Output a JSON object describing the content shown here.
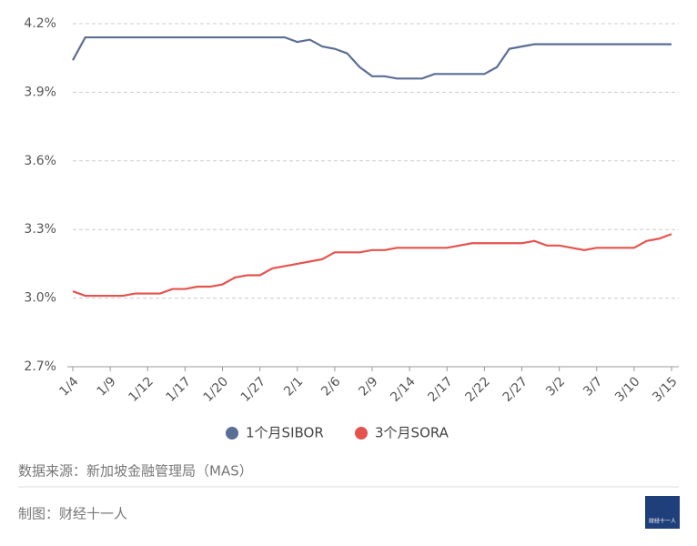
{
  "chart_data": {
    "type": "line",
    "categories": [
      "1/4",
      null,
      null,
      "1/9",
      null,
      null,
      "1/12",
      null,
      null,
      "1/17",
      null,
      null,
      "1/20",
      null,
      null,
      "1/27",
      null,
      null,
      "2/1",
      null,
      null,
      "2/6",
      null,
      null,
      "2/9",
      null,
      null,
      "2/14",
      null,
      null,
      "2/17",
      null,
      null,
      "2/22",
      null,
      null,
      "2/27",
      null,
      null,
      "3/2",
      null,
      null,
      "3/7",
      null,
      null,
      "3/10",
      null,
      null,
      "3/15"
    ],
    "series": [
      {
        "name": "1个月SIBOR",
        "color": "#5b6e96",
        "values": [
          4.04,
          4.14,
          4.14,
          4.14,
          4.14,
          4.14,
          4.14,
          4.14,
          4.14,
          4.14,
          4.14,
          4.14,
          4.14,
          4.14,
          4.14,
          4.14,
          4.14,
          4.14,
          4.12,
          4.13,
          4.1,
          4.09,
          4.07,
          4.01,
          3.97,
          3.97,
          3.96,
          3.96,
          3.96,
          3.98,
          3.98,
          3.98,
          3.98,
          3.98,
          4.01,
          4.09,
          4.1,
          4.11,
          4.11,
          4.11,
          4.11,
          4.11,
          4.11,
          4.11,
          4.11,
          4.11,
          4.11,
          4.11,
          4.11
        ]
      },
      {
        "name": "3个月SORA",
        "color": "#e5534f",
        "values": [
          3.03,
          3.01,
          3.01,
          3.01,
          3.01,
          3.02,
          3.02,
          3.02,
          3.04,
          3.04,
          3.05,
          3.05,
          3.06,
          3.09,
          3.1,
          3.1,
          3.13,
          3.14,
          3.15,
          3.16,
          3.17,
          3.2,
          3.2,
          3.2,
          3.21,
          3.21,
          3.22,
          3.22,
          3.22,
          3.22,
          3.22,
          3.23,
          3.24,
          3.24,
          3.24,
          3.24,
          3.24,
          3.25,
          3.23,
          3.23,
          3.22,
          3.21,
          3.22,
          3.22,
          3.22,
          3.22,
          3.25,
          3.26,
          3.28
        ]
      }
    ],
    "ylim": [
      2.7,
      4.2
    ],
    "yticks": [
      {
        "value": 2.7,
        "label": "2.7%"
      },
      {
        "value": 3.0,
        "label": "3.0%"
      },
      {
        "value": 3.3,
        "label": "3.3%"
      },
      {
        "value": 3.6,
        "label": "3.6%"
      },
      {
        "value": 3.9,
        "label": "3.9%"
      },
      {
        "value": 4.2,
        "label": "4.2%"
      }
    ],
    "grid": true,
    "source": "数据来源：新加坡金融管理局（MAS）",
    "credit": "制图：财经十一人",
    "logo_text": "财经十一人"
  }
}
